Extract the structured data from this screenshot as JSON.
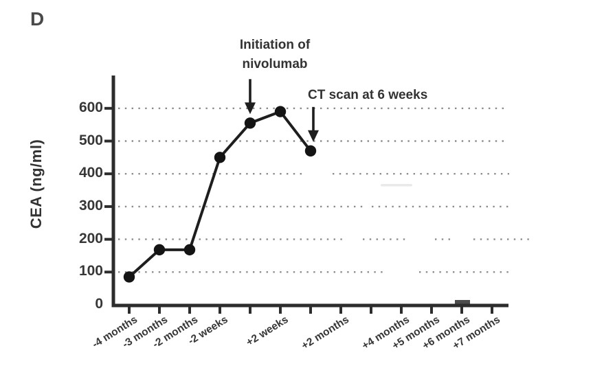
{
  "panel_label": "D",
  "annotations": {
    "initiation": {
      "line1": "Initiation of",
      "line2": "nivolumab",
      "target_category_index": 4
    },
    "ct_scan": {
      "text": "CT scan at 6 weeks",
      "target_category_index": 6
    }
  },
  "chart_data": {
    "type": "line",
    "title": "",
    "xlabel": "",
    "ylabel": "CEA (ng/ml)",
    "ylim": [
      0,
      650
    ],
    "yticks": [
      600,
      500,
      400,
      300,
      200,
      100,
      0
    ],
    "grid": "horizontal dotted gray lines at 100 through 600",
    "legend": "none",
    "categories": [
      "-4 months",
      "-3 months",
      "-2 months",
      "-2 weeks",
      "",
      "+2 weeks",
      "",
      "+2 months",
      "",
      "+4 months",
      "+5 months",
      "+6 months",
      "+7 months"
    ],
    "series": [
      {
        "name": "CEA (ng/ml)",
        "marker": "filled-circle",
        "points": [
          {
            "category_index": 0,
            "category": "-4 months",
            "value": 85
          },
          {
            "category_index": 1,
            "category": "-3 months",
            "value": 168
          },
          {
            "category_index": 2,
            "category": "-2 months",
            "value": 168
          },
          {
            "category_index": 3,
            "category": "-2 weeks",
            "value": 450
          },
          {
            "category_index": 4,
            "category": "",
            "value": 555
          },
          {
            "category_index": 5,
            "category": "+2 weeks",
            "value": 590
          },
          {
            "category_index": 6,
            "category": "",
            "value": 470
          }
        ]
      }
    ]
  },
  "colors": {
    "line": "#1e1e1e",
    "marker": "#141414",
    "axis": "#2d2d2d",
    "grid_dots": "#8c8c8c",
    "text": "#373737",
    "background": "#ffffff"
  }
}
